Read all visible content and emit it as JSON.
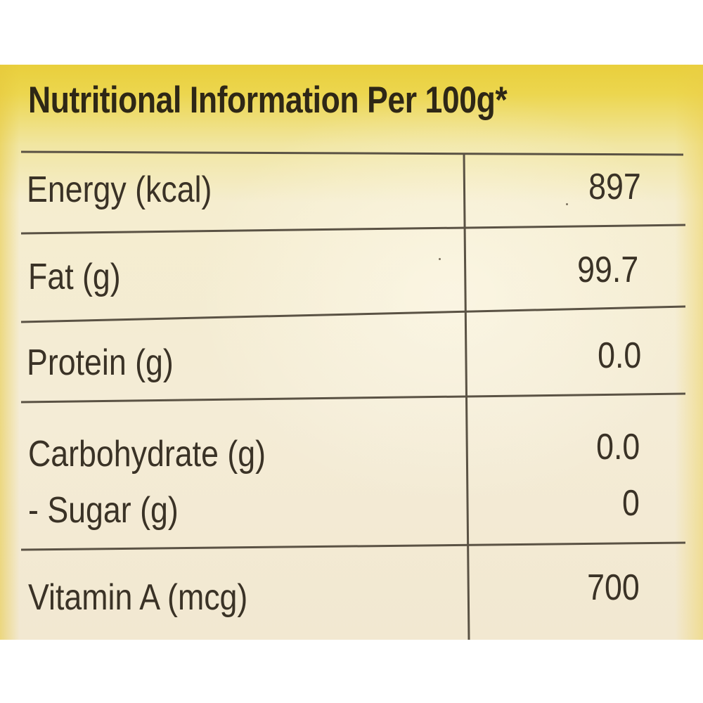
{
  "title": "Nutritional Information Per 100g*",
  "rows": [
    {
      "label": "Energy (kcal)",
      "value": "897"
    },
    {
      "label": "Fat (g)",
      "value": "99.7"
    },
    {
      "label": "Protein (g)",
      "value": "0.0"
    },
    {
      "label": "Carbohydrate (g)",
      "value": "0.0"
    },
    {
      "label": "- Sugar (g)",
      "value": "0"
    },
    {
      "label": "Vitamin A (mcg)",
      "value": "700"
    }
  ],
  "colors": {
    "label_band": "#e9cf3c",
    "paper": "#f4ecd6",
    "ink": "#3a3226",
    "rule": "#5a5244"
  }
}
